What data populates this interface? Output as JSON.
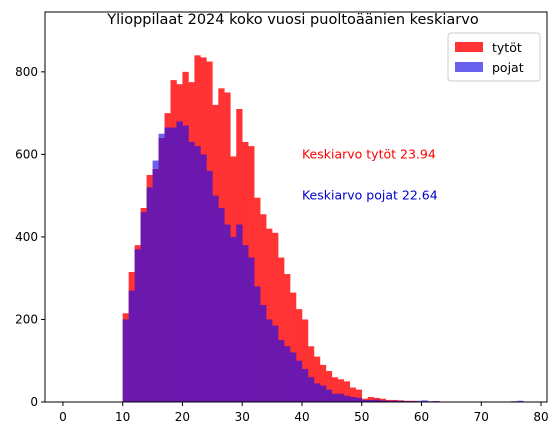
{
  "chart_data": {
    "type": "bar",
    "title": "Ylioppilaat 2024 koko vuosi puoltoäänien keskiarvo",
    "xlabel": "",
    "ylabel": "",
    "xlim": [
      -3,
      81
    ],
    "ylim": [
      0,
      945
    ],
    "xticks": [
      0,
      10,
      20,
      30,
      40,
      50,
      60,
      70,
      80
    ],
    "yticks": [
      0,
      200,
      400,
      600,
      800
    ],
    "bin_width": 1,
    "legend": {
      "placement": "top-right"
    },
    "colors": {
      "tytot": "#ff3333",
      "pojat": "#6a60ee",
      "overlap": "#6a18ae"
    },
    "series": [
      {
        "name": "tytöt",
        "bins": [
          10,
          11,
          12,
          13,
          14,
          15,
          16,
          17,
          18,
          19,
          20,
          21,
          22,
          23,
          24,
          25,
          26,
          27,
          28,
          29,
          30,
          31,
          32,
          33,
          34,
          35,
          36,
          37,
          38,
          39,
          40,
          41,
          42,
          43,
          44,
          45,
          46,
          47,
          48,
          49,
          50,
          51,
          52,
          53,
          54,
          55,
          56,
          57,
          58,
          59,
          60,
          61,
          62,
          63,
          64,
          65,
          66,
          67,
          68,
          69,
          70,
          71,
          72,
          73,
          74,
          75,
          76,
          77
        ],
        "values": [
          215,
          315,
          380,
          470,
          550,
          565,
          640,
          700,
          780,
          770,
          800,
          775,
          840,
          835,
          825,
          720,
          760,
          750,
          595,
          710,
          630,
          620,
          495,
          455,
          420,
          410,
          350,
          310,
          265,
          225,
          200,
          135,
          110,
          90,
          75,
          60,
          55,
          50,
          35,
          30,
          8,
          12,
          10,
          8,
          5,
          5,
          4,
          3,
          3,
          2,
          2,
          1,
          2,
          1,
          1,
          1,
          0,
          0,
          0,
          0,
          0,
          0,
          0,
          0,
          0,
          0,
          0,
          0
        ]
      },
      {
        "name": "pojat",
        "bins": [
          10,
          11,
          12,
          13,
          14,
          15,
          16,
          17,
          18,
          19,
          20,
          21,
          22,
          23,
          24,
          25,
          26,
          27,
          28,
          29,
          30,
          31,
          32,
          33,
          34,
          35,
          36,
          37,
          38,
          39,
          40,
          41,
          42,
          43,
          44,
          45,
          46,
          47,
          48,
          49,
          50,
          51,
          52,
          53,
          54,
          55,
          56,
          57,
          58,
          59,
          60,
          61,
          62,
          63,
          64,
          65,
          66,
          67,
          68,
          69,
          70,
          71,
          72,
          73,
          74,
          75,
          76,
          77
        ],
        "values": [
          200,
          270,
          370,
          460,
          520,
          585,
          650,
          665,
          665,
          680,
          670,
          630,
          620,
          600,
          560,
          500,
          470,
          430,
          400,
          430,
          380,
          350,
          280,
          235,
          200,
          185,
          150,
          135,
          120,
          100,
          80,
          60,
          45,
          40,
          30,
          20,
          20,
          15,
          12,
          10,
          5,
          5,
          6,
          4,
          3,
          3,
          3,
          2,
          2,
          3,
          4,
          2,
          2,
          1,
          1,
          1,
          0,
          0,
          0,
          0,
          0,
          0,
          0,
          0,
          0,
          2,
          3,
          0
        ]
      }
    ],
    "annotations": [
      {
        "text": "Keskiarvo tytöt 23.94",
        "x": 40,
        "y": 600,
        "color": "#ff0000"
      },
      {
        "text": "Keskiarvo pojat 22.64",
        "x": 40,
        "y": 500,
        "color": "#0000cc"
      }
    ]
  }
}
